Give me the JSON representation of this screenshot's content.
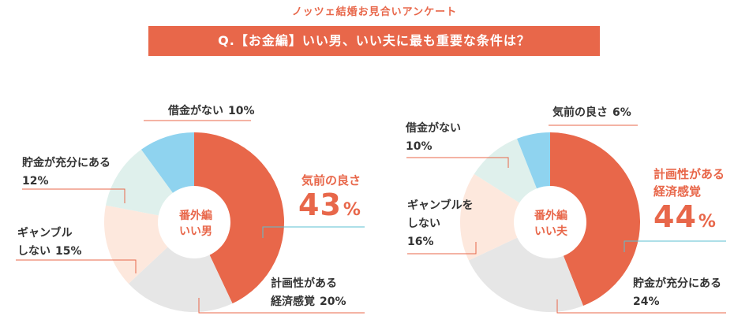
{
  "header": {
    "subtitle": "ノッツェ結婚お見合いアンケート",
    "question": "Q.【お金編】いい男、いい夫に最も重要な条件は？",
    "accent_color": "#e8674a"
  },
  "chart_data": [
    {
      "type": "pie",
      "center_label": [
        "番外編",
        "いい男"
      ],
      "slices": [
        {
          "label": "気前の良さ",
          "value": 43,
          "color": "#e8674a"
        },
        {
          "label": "計画性がある経済感覚",
          "value": 20,
          "color": "#e6e6e6"
        },
        {
          "label": "ギャンブルしない",
          "value": 15,
          "color": "#fde8dd"
        },
        {
          "label": "貯金が充分にある",
          "value": 12,
          "color": "#dff0ec"
        },
        {
          "label": "借金がない",
          "value": 10,
          "color": "#8fd3ef"
        }
      ],
      "labels": {
        "kimae": "気前の良さ",
        "kimae_pct": "43",
        "keikaku_1": "計画性がある",
        "keikaku_2": "経済感覚",
        "keikaku_pct": "20%",
        "gamble_1": "ギャンブル",
        "gamble_2": "しない",
        "gamble_pct": "15%",
        "chokin_1": "貯金が充分にある",
        "chokin_pct": "12%",
        "shakkin": "借金がない",
        "shakkin_pct": "10%",
        "unit": "%"
      }
    },
    {
      "type": "pie",
      "center_label": [
        "番外編",
        "いい夫"
      ],
      "slices": [
        {
          "label": "計画性がある経済感覚",
          "value": 44,
          "color": "#e8674a"
        },
        {
          "label": "貯金が充分にある",
          "value": 24,
          "color": "#e6e6e6"
        },
        {
          "label": "ギャンブルをしない",
          "value": 16,
          "color": "#fde8dd"
        },
        {
          "label": "借金がない",
          "value": 10,
          "color": "#dff0ec"
        },
        {
          "label": "気前の良さ",
          "value": 6,
          "color": "#8fd3ef"
        }
      ],
      "labels": {
        "keikaku_1": "計画性がある",
        "keikaku_2": "経済感覚",
        "keikaku_pct": "44",
        "chokin_1": "貯金が充分にある",
        "chokin_pct": "24%",
        "gamble_1": "ギャンブルを",
        "gamble_2": "しない",
        "gamble_pct": "16%",
        "shakkin_1": "借金がない",
        "shakkin_pct": "10%",
        "kimae": "気前の良さ",
        "kimae_pct": "6%",
        "unit": "%"
      }
    }
  ]
}
